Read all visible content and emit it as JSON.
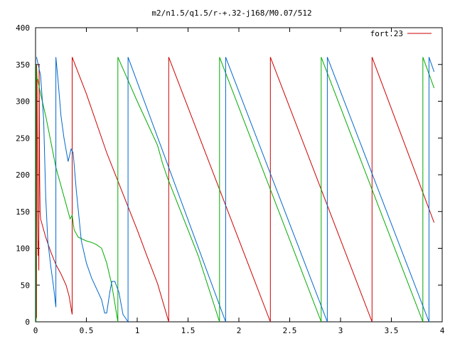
{
  "chart_data": {
    "type": "line",
    "title": "m2/n1.5/q1.5/r-+.32-j168/M0.07/512",
    "xlabel": "",
    "ylabel": "",
    "xlim": [
      0,
      4
    ],
    "ylim": [
      0,
      400
    ],
    "grid": false,
    "legend_position": "top-right",
    "x_ticks": [
      0,
      0.5,
      1,
      1.5,
      2,
      2.5,
      3,
      3.5,
      4
    ],
    "x_tick_labels": [
      "0",
      "0.5",
      "1",
      "1.5",
      "2",
      "2.5",
      "3",
      "3.5",
      "4"
    ],
    "y_ticks": [
      0,
      50,
      100,
      150,
      200,
      250,
      300,
      350,
      400
    ],
    "y_tick_labels": [
      "0",
      "50",
      "100",
      "150",
      "200",
      "250",
      "300",
      "350",
      "400"
    ],
    "series": [
      {
        "name": "fort.23",
        "color": "#cc0000",
        "in_legend": true,
        "points": [
          [
            0.01,
            5
          ],
          [
            0.01,
            350
          ],
          [
            0.015,
            330
          ],
          [
            0.02,
            150
          ],
          [
            0.025,
            90
          ],
          [
            0.03,
            110
          ],
          [
            0.032,
            70
          ],
          [
            0.035,
            350
          ],
          [
            0.037,
            300
          ],
          [
            0.04,
            200
          ],
          [
            0.045,
            150
          ],
          [
            0.05,
            140
          ],
          [
            0.1,
            115
          ],
          [
            0.15,
            95
          ],
          [
            0.2,
            78
          ],
          [
            0.25,
            65
          ],
          [
            0.3,
            50
          ],
          [
            0.33,
            35
          ],
          [
            0.36,
            10
          ],
          [
            0.36,
            360
          ],
          [
            0.5,
            310
          ],
          [
            0.6,
            270
          ],
          [
            0.7,
            230
          ],
          [
            0.8,
            195
          ],
          [
            0.9,
            160
          ],
          [
            1.0,
            125
          ],
          [
            1.1,
            88
          ],
          [
            1.2,
            52
          ],
          [
            1.31,
            0
          ],
          [
            1.31,
            360
          ],
          [
            2.31,
            0
          ],
          [
            2.31,
            360
          ],
          [
            3.31,
            0
          ],
          [
            3.31,
            360
          ],
          [
            3.92,
            135
          ]
        ]
      },
      {
        "name": "",
        "color": "#00aa00",
        "in_legend": false,
        "points": [
          [
            0.005,
            0
          ],
          [
            0.005,
            350
          ],
          [
            0.01,
            330
          ],
          [
            0.02,
            330
          ],
          [
            0.05,
            310
          ],
          [
            0.1,
            280
          ],
          [
            0.15,
            245
          ],
          [
            0.2,
            210
          ],
          [
            0.25,
            185
          ],
          [
            0.3,
            160
          ],
          [
            0.34,
            140
          ],
          [
            0.36,
            145
          ],
          [
            0.38,
            125
          ],
          [
            0.42,
            115
          ],
          [
            0.5,
            110
          ],
          [
            0.55,
            108
          ],
          [
            0.6,
            105
          ],
          [
            0.65,
            100
          ],
          [
            0.7,
            80
          ],
          [
            0.75,
            50
          ],
          [
            0.81,
            0
          ],
          [
            0.81,
            360
          ],
          [
            1.0,
            300
          ],
          [
            1.2,
            240
          ],
          [
            1.25,
            215
          ],
          [
            1.3,
            195
          ],
          [
            1.4,
            160
          ],
          [
            1.6,
            90
          ],
          [
            1.81,
            0
          ],
          [
            1.81,
            360
          ],
          [
            2.81,
            0
          ],
          [
            2.81,
            360
          ],
          [
            3.81,
            0
          ],
          [
            3.81,
            360
          ],
          [
            3.92,
            318
          ]
        ]
      },
      {
        "name": "",
        "color": "#0066cc",
        "in_legend": false,
        "points": [
          [
            0.01,
            360
          ],
          [
            0.05,
            335
          ],
          [
            0.08,
            275
          ],
          [
            0.1,
            170
          ],
          [
            0.12,
            110
          ],
          [
            0.15,
            75
          ],
          [
            0.18,
            45
          ],
          [
            0.2,
            20
          ],
          [
            0.2,
            360
          ],
          [
            0.22,
            330
          ],
          [
            0.25,
            280
          ],
          [
            0.28,
            250
          ],
          [
            0.32,
            218
          ],
          [
            0.35,
            235
          ],
          [
            0.37,
            230
          ],
          [
            0.4,
            180
          ],
          [
            0.45,
            110
          ],
          [
            0.5,
            80
          ],
          [
            0.55,
            60
          ],
          [
            0.6,
            45
          ],
          [
            0.65,
            30
          ],
          [
            0.68,
            12
          ],
          [
            0.7,
            12
          ],
          [
            0.73,
            40
          ],
          [
            0.75,
            55
          ],
          [
            0.78,
            55
          ],
          [
            0.82,
            40
          ],
          [
            0.86,
            10
          ],
          [
            0.91,
            0
          ],
          [
            0.91,
            360
          ],
          [
            1.87,
            0
          ],
          [
            1.87,
            360
          ],
          [
            2.87,
            0
          ],
          [
            2.87,
            360
          ],
          [
            3.87,
            0
          ],
          [
            3.87,
            360
          ],
          [
            3.92,
            340
          ]
        ]
      }
    ]
  }
}
